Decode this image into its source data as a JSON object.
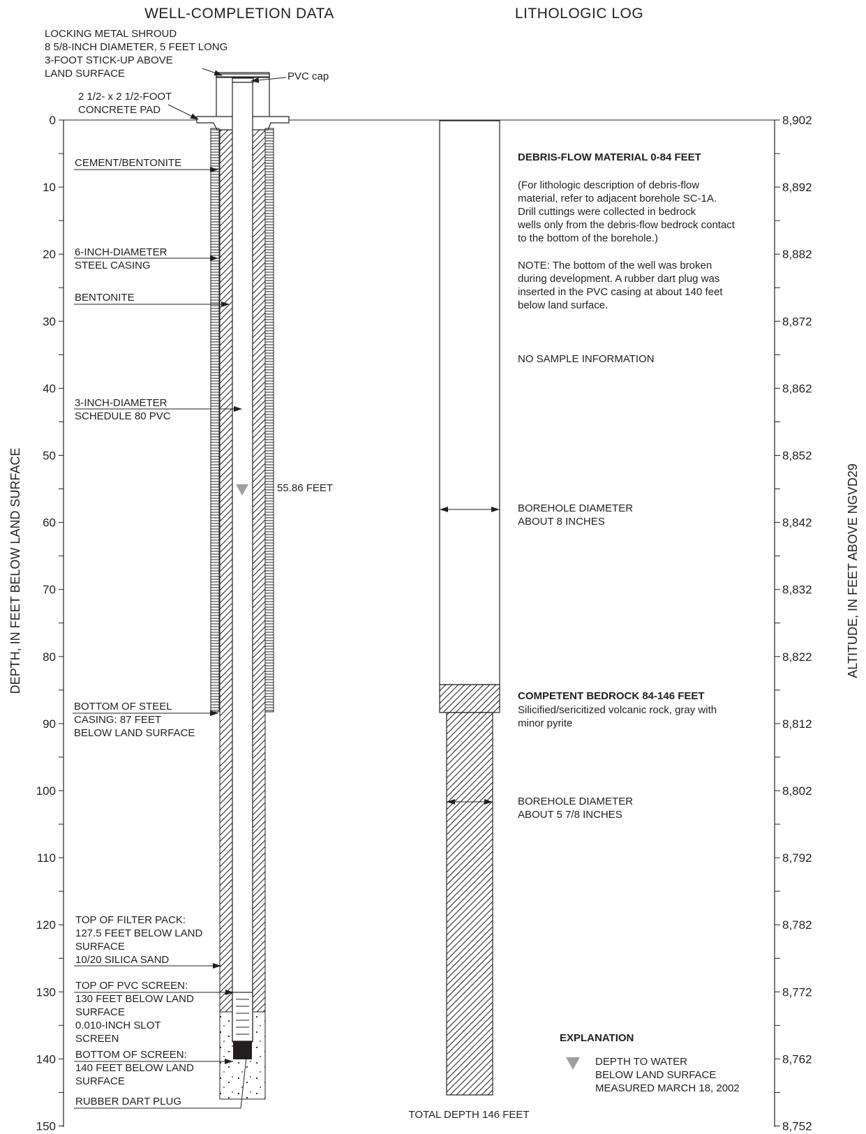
{
  "headings": {
    "left": "WELL-COMPLETION DATA",
    "right": "LITHOLOGIC LOG"
  },
  "axes": {
    "left_title": "DEPTH, IN FEET BELOW LAND SURFACE",
    "right_title": "ALTITUDE, IN FEET ABOVE NGVD29",
    "depth_ticks": [
      "0",
      "10",
      "20",
      "30",
      "40",
      "50",
      "60",
      "70",
      "80",
      "90",
      "100",
      "110",
      "120",
      "130",
      "140",
      "150"
    ],
    "altitude_ticks": [
      "8,902",
      "8,892",
      "8,882",
      "8,872",
      "8,862",
      "8,852",
      "8,842",
      "8,832",
      "8,822",
      "8,812",
      "8,802",
      "8,792",
      "8,782",
      "8,772",
      "8,762",
      "8,752"
    ]
  },
  "well": {
    "shroud_lines": [
      "LOCKING METAL SHROUD",
      "8 5/8-INCH DIAMETER, 5 FEET LONG",
      "3-FOOT STICK-UP ABOVE",
      "LAND SURFACE"
    ],
    "pvc_cap": "PVC cap",
    "pad_lines": [
      "2 1/2- x 2 1/2-FOOT",
      "CONCRETE PAD"
    ],
    "cement": "CEMENT/BENTONITE",
    "steel_casing_lines": [
      "6-INCH-DIAMETER",
      "STEEL CASING"
    ],
    "bentonite": "BENTONITE",
    "pvc_lines": [
      "3-INCH-DIAMETER",
      "SCHEDULE 80 PVC"
    ],
    "water_level": "55.86 FEET",
    "casing_bottom_lines": [
      "BOTTOM OF STEEL",
      "CASING: 87 FEET",
      "BELOW LAND SURFACE"
    ],
    "filter_pack_lines": [
      "TOP OF FILTER PACK:",
      "127.5 FEET BELOW LAND",
      "SURFACE",
      "10/20 SILICA SAND"
    ],
    "screen_top_lines": [
      "TOP OF PVC SCREEN:",
      "130 FEET BELOW LAND",
      "SURFACE",
      "0.010-INCH SLOT",
      "SCREEN"
    ],
    "screen_bottom_lines": [
      "BOTTOM OF SCREEN:",
      "140 FEET BELOW LAND",
      "SURFACE"
    ],
    "dart_plug": "RUBBER DART PLUG"
  },
  "litho": {
    "debris_title": "DEBRIS-FLOW MATERIAL 0-84 FEET",
    "debris_note_lines": [
      "(For lithologic description of debris-flow",
      "material, refer to adjacent borehole SC-1A.",
      "Drill cuttings were collected in bedrock",
      "wells only from the debris-flow bedrock contact",
      "to the bottom of the borehole.)"
    ],
    "note_lines": [
      "NOTE: The bottom of the well was broken",
      "during development. A rubber dart plug was",
      "inserted in the PVC casing at about 140 feet",
      "below land surface."
    ],
    "no_sample": "NO SAMPLE INFORMATION",
    "diam8_lines": [
      "BOREHOLE DIAMETER",
      "ABOUT 8 INCHES"
    ],
    "bedrock_title": "COMPETENT BEDROCK 84-146 FEET",
    "bedrock_lines": [
      "Silicified/sericitized volcanic rock, gray with",
      "minor pyrite"
    ],
    "diam578_lines": [
      "BOREHOLE DIAMETER",
      "ABOUT 5 7/8 INCHES"
    ],
    "total_depth": "TOTAL DEPTH 146 FEET"
  },
  "explanation": {
    "title": "EXPLANATION",
    "water_lines": [
      "DEPTH TO WATER",
      "BELOW LAND SURFACE",
      "MEASURED MARCH 18, 2002"
    ]
  }
}
